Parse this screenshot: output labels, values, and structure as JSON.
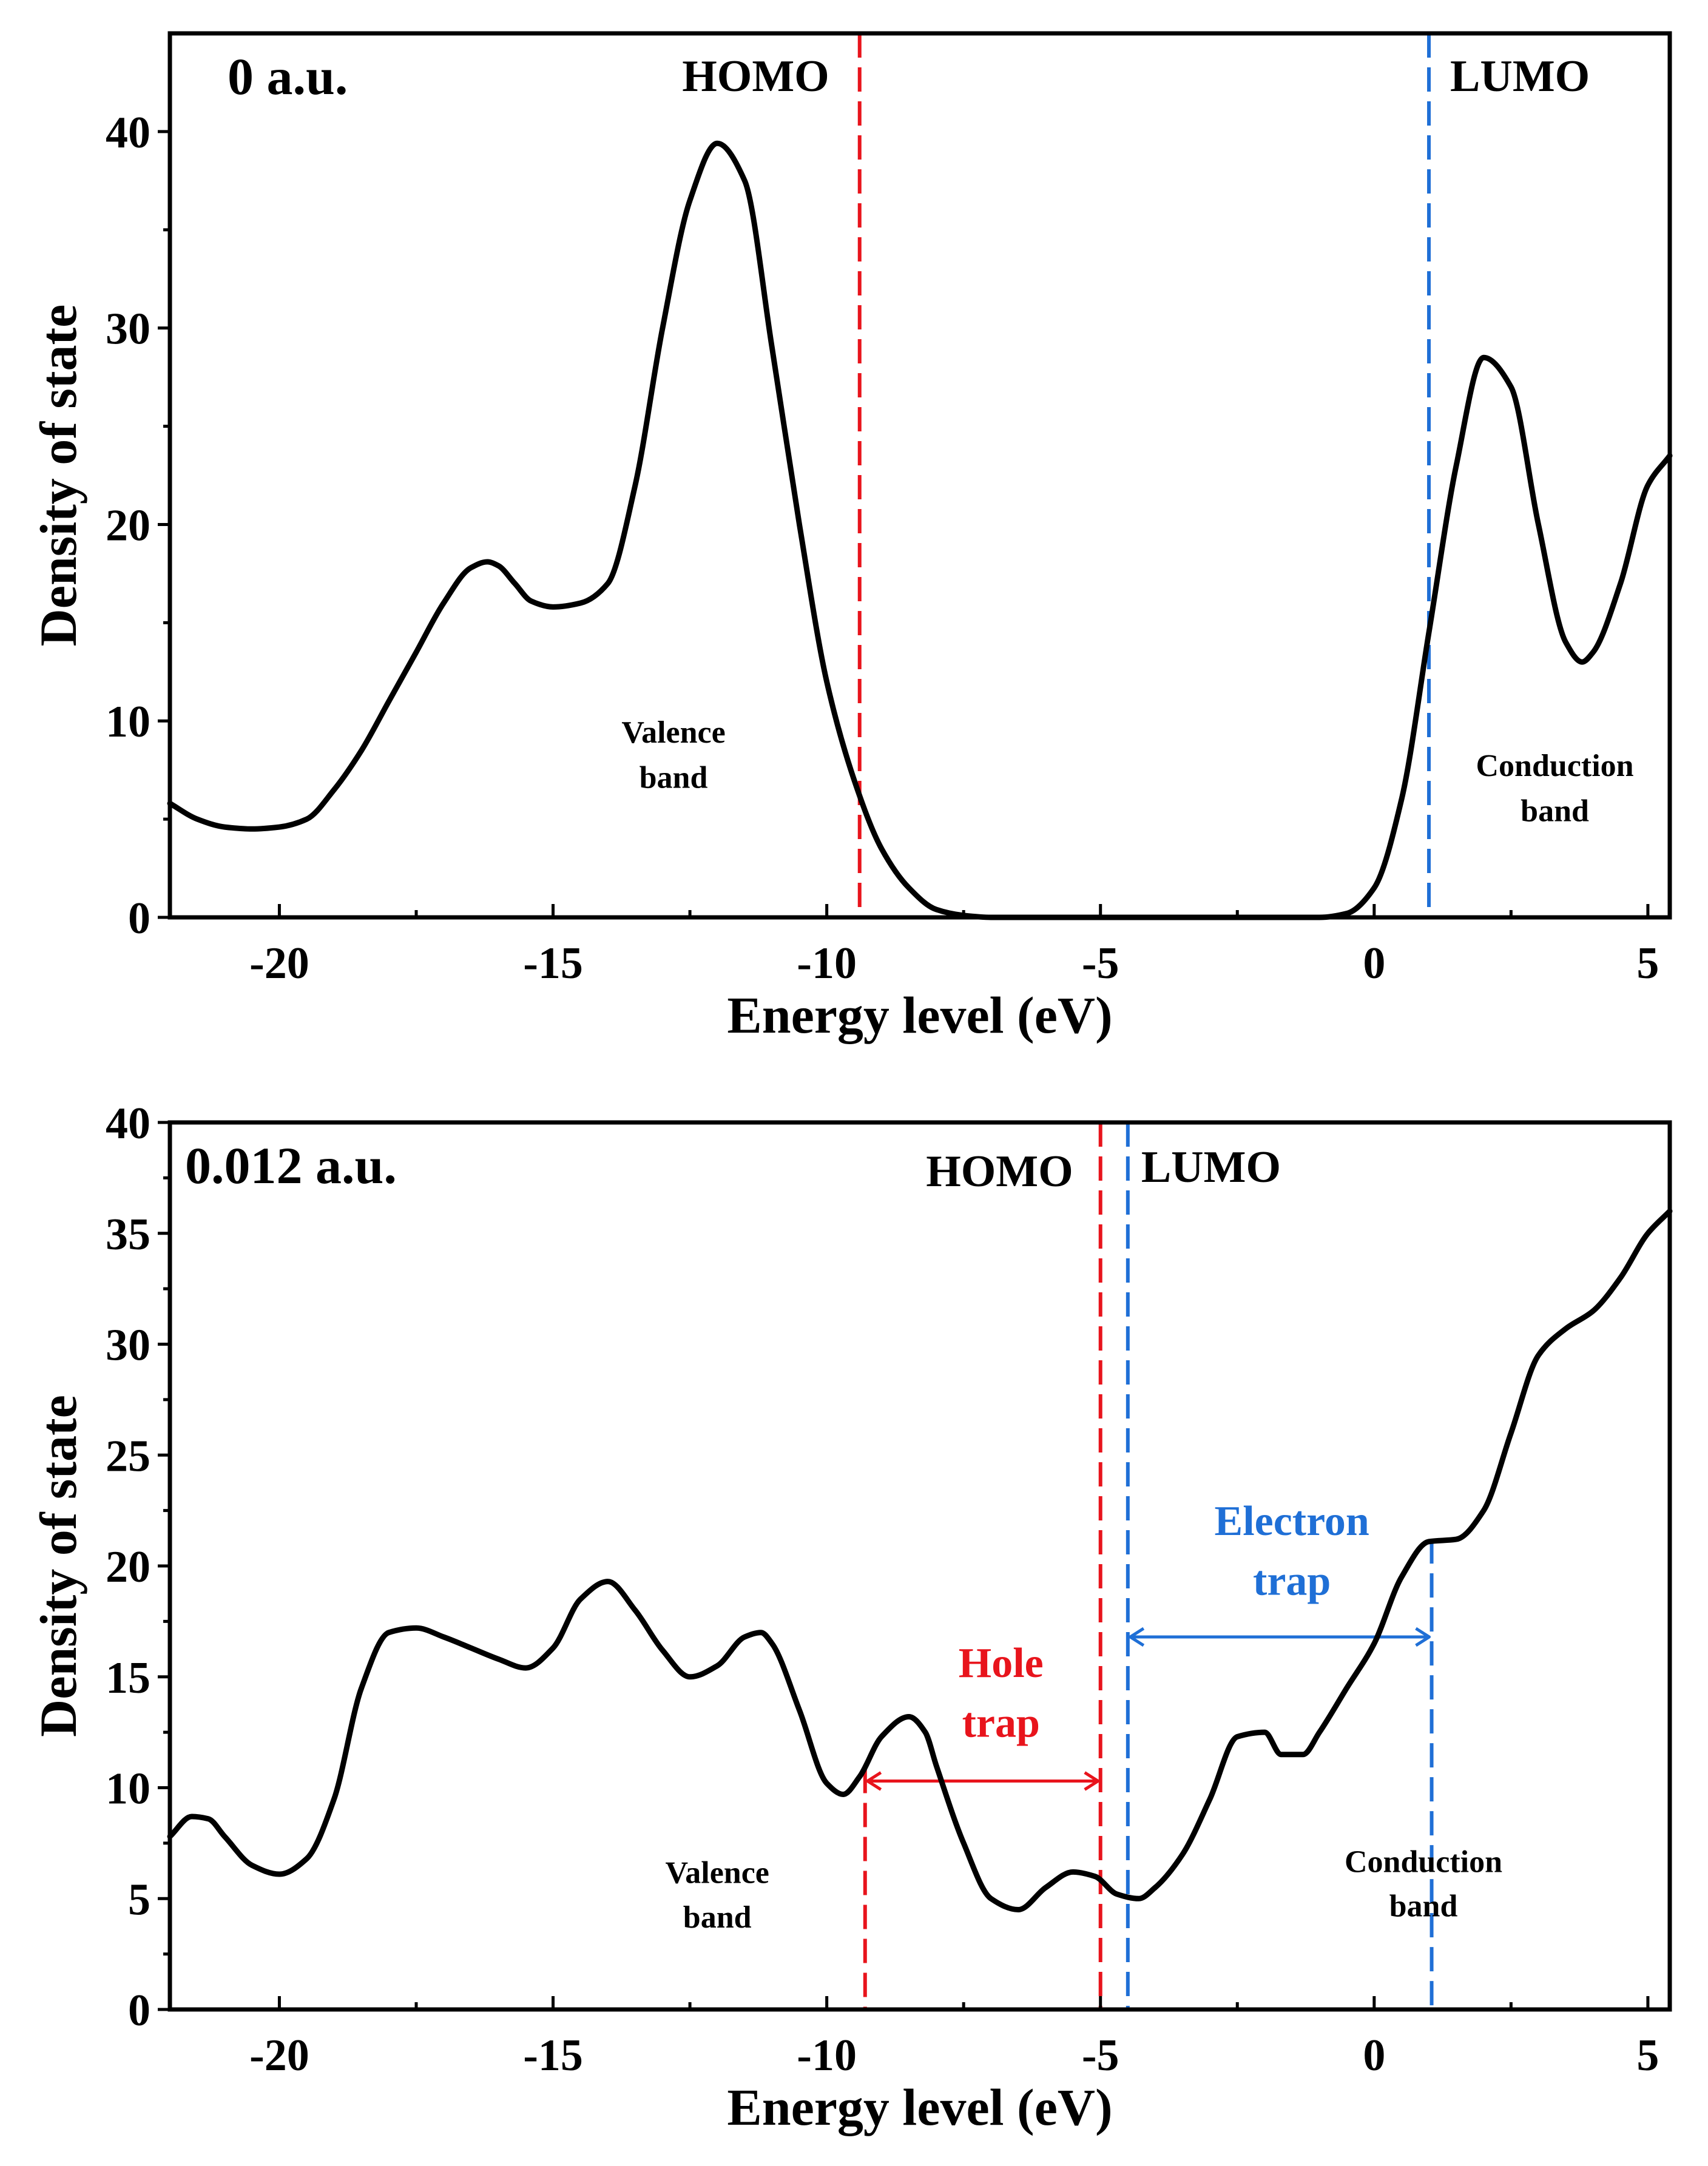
{
  "chart_data": [
    {
      "type": "line",
      "panel_label": "0 a.u.",
      "xlabel": "Energy level (eV)",
      "ylabel": "Density of state",
      "xlim": [
        -22,
        5.4
      ],
      "ylim": [
        0,
        45
      ],
      "xticks": [
        -20,
        -15,
        -10,
        -5,
        0,
        5
      ],
      "yticks": [
        0,
        10,
        20,
        30,
        40
      ],
      "series": [
        {
          "x": [
            -22,
            -21.5,
            -21,
            -20.5,
            -20,
            -19.5,
            -19,
            -18.5,
            -18,
            -17.5,
            -17,
            -16.5,
            -16.2,
            -16,
            -15.7,
            -15.4,
            -15,
            -14.5,
            -14,
            -13.5,
            -13,
            -12.5,
            -12,
            -11.5,
            -11,
            -10.5,
            -10,
            -9.5,
            -9,
            -8.5,
            -8,
            -7.5,
            -7,
            -6,
            -5,
            -4,
            -3,
            -2,
            -1,
            -0.5,
            0,
            0.5,
            1,
            1.5,
            2,
            2.5,
            3,
            3.5,
            3.8,
            4,
            4.5,
            5,
            5.4
          ],
          "y": [
            5.8,
            5.0,
            4.6,
            4.5,
            4.6,
            5.0,
            6.5,
            8.5,
            11,
            13.5,
            16,
            17.8,
            18.1,
            17.9,
            17.0,
            16.1,
            15.8,
            16.0,
            17,
            22,
            30,
            36.5,
            39.4,
            37.5,
            29,
            20,
            12,
            7,
            3.5,
            1.5,
            0.4,
            0.1,
            0,
            0,
            0,
            0,
            0,
            0,
            0,
            0.2,
            1.5,
            6,
            14.5,
            23,
            28.5,
            27,
            20,
            14,
            13,
            13.5,
            17,
            22,
            23.5
          ]
        }
      ],
      "annotations": {
        "homo_label": "HOMO",
        "homo_x": -9.4,
        "lumo_label": "LUMO",
        "lumo_x": 1.0,
        "valence_band_line1": "Valence",
        "valence_band_line2": "band",
        "conduction_band_line1": "Conduction",
        "conduction_band_line2": "band"
      },
      "colors": {
        "homo": "#e8141c",
        "lumo": "#1f6fd6",
        "curve": "#000000"
      }
    },
    {
      "type": "line",
      "panel_label": "0.012 a.u.",
      "xlabel": "Energy level (eV)",
      "ylabel": "Density of state",
      "xlim": [
        -22,
        5.4
      ],
      "ylim": [
        0,
        40
      ],
      "xticks": [
        -20,
        -15,
        -10,
        -5,
        0,
        5
      ],
      "yticks": [
        0,
        5,
        10,
        15,
        20,
        25,
        30,
        35,
        40
      ],
      "series": [
        {
          "x": [
            -22,
            -21.6,
            -21.3,
            -21,
            -20.5,
            -20,
            -19.5,
            -19,
            -18.5,
            -18,
            -17.5,
            -17,
            -16.5,
            -16,
            -15.5,
            -15,
            -14.5,
            -14,
            -13.5,
            -13,
            -12.5,
            -12,
            -11.5,
            -11.2,
            -11,
            -10.5,
            -10,
            -9.7,
            -9.4,
            -9,
            -8.5,
            -8.2,
            -8,
            -7.5,
            -7,
            -6.5,
            -6,
            -5.5,
            -5.1,
            -4.7,
            -4.3,
            -4,
            -3.5,
            -3,
            -2.5,
            -2,
            -1.7,
            -1.3,
            -1,
            -0.5,
            0,
            0.5,
            1,
            1.5,
            2,
            2.5,
            3,
            3.5,
            4,
            4.5,
            5,
            5.4
          ],
          "y": [
            7.8,
            8.7,
            8.6,
            7.8,
            6.5,
            6.1,
            6.8,
            9.5,
            14.5,
            17.0,
            17.2,
            16.8,
            16.3,
            15.8,
            15.4,
            16.3,
            18.5,
            19.3,
            18.0,
            16.2,
            15.0,
            15.5,
            16.8,
            17.0,
            16.5,
            13.5,
            10.2,
            9.7,
            10.5,
            12.3,
            13.2,
            12.5,
            11.0,
            7.5,
            5.0,
            4.5,
            5.5,
            6.2,
            6.0,
            5.2,
            5.0,
            5.5,
            7.0,
            9.5,
            12.3,
            12.5,
            11.5,
            11.5,
            12.5,
            14.5,
            16.5,
            19.5,
            21.1,
            21.2,
            22.5,
            26.0,
            29.5,
            30.7,
            31.5,
            33.0,
            35.0,
            36.0
          ]
        }
      ],
      "annotations": {
        "homo_label": "HOMO",
        "homo_x": -5.0,
        "lumo_label": "LUMO",
        "lumo_x": -4.5,
        "homo_ref_x": -9.3,
        "lumo_ref_x": 1.05,
        "hole_trap_line1": "Hole",
        "hole_trap_line2": "trap",
        "hole_trap_y": 10.3,
        "electron_trap_line1": "Electron",
        "electron_trap_line2": "trap",
        "electron_trap_y": 16.8,
        "valence_band_line1": "Valence",
        "valence_band_line2": "band",
        "conduction_band_line1": "Conduction",
        "conduction_band_line2": "band"
      },
      "colors": {
        "homo": "#e8141c",
        "lumo": "#1f6fd6",
        "curve": "#000000"
      }
    }
  ]
}
